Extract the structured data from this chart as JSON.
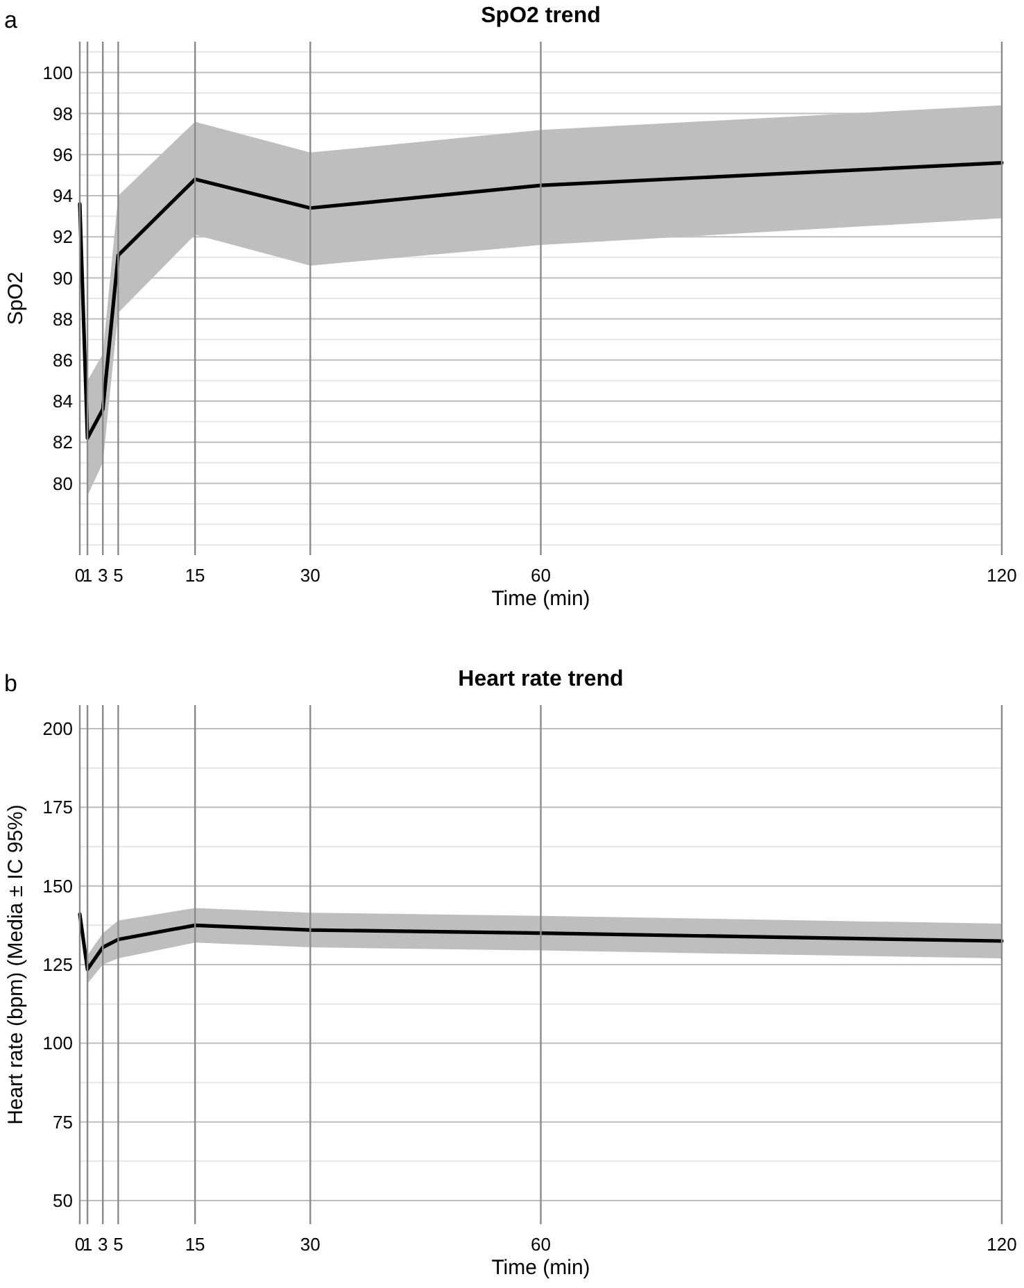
{
  "chart_data": [
    {
      "type": "line",
      "title": "SpO2 trend",
      "xlabel": "Time (min)",
      "ylabel": "SpO2",
      "annotations": [
        "a"
      ],
      "x": [
        0,
        1,
        3,
        5,
        15,
        30,
        60,
        120
      ],
      "xlim": [
        0,
        120
      ],
      "xticks": [
        0,
        1,
        3,
        5,
        15,
        30,
        60,
        120
      ],
      "ylim": [
        76.5,
        101.5
      ],
      "yticks": [
        80,
        82,
        84,
        86,
        88,
        90,
        92,
        94,
        96,
        98,
        100
      ],
      "grid": true,
      "series": [
        {
          "color": "#000000",
          "values": [
            93.6,
            82.2,
            83.6,
            91.1,
            94.8,
            93.4,
            94.5,
            95.6
          ],
          "lower": [
            null,
            79.4,
            81.0,
            88.3,
            92.1,
            90.6,
            91.6,
            92.9
          ],
          "upper": [
            null,
            85.0,
            86.3,
            94.0,
            97.6,
            96.1,
            97.2,
            98.4
          ]
        }
      ]
    },
    {
      "type": "line",
      "title": "Heart rate trend",
      "xlabel": "Time (min)",
      "ylabel": "Heart rate (bpm) (Media ± IC 95%)",
      "annotations": [
        "b"
      ],
      "x": [
        0,
        1,
        3,
        5,
        15,
        30,
        60,
        120
      ],
      "xlim": [
        0,
        120
      ],
      "xticks": [
        0,
        1,
        3,
        5,
        15,
        30,
        60,
        120
      ],
      "ylim": [
        42.5,
        207.5
      ],
      "yticks": [
        50,
        75,
        100,
        125,
        150,
        175,
        200
      ],
      "grid": true,
      "series": [
        {
          "color": "#000000",
          "values": [
            141,
            123.5,
            130.5,
            133,
            137.5,
            136,
            135,
            132.5
          ],
          "lower": [
            null,
            119,
            125,
            127,
            132,
            130.5,
            129.5,
            127
          ],
          "upper": [
            null,
            128,
            135,
            139,
            143,
            141.5,
            140.5,
            138
          ]
        }
      ]
    }
  ]
}
